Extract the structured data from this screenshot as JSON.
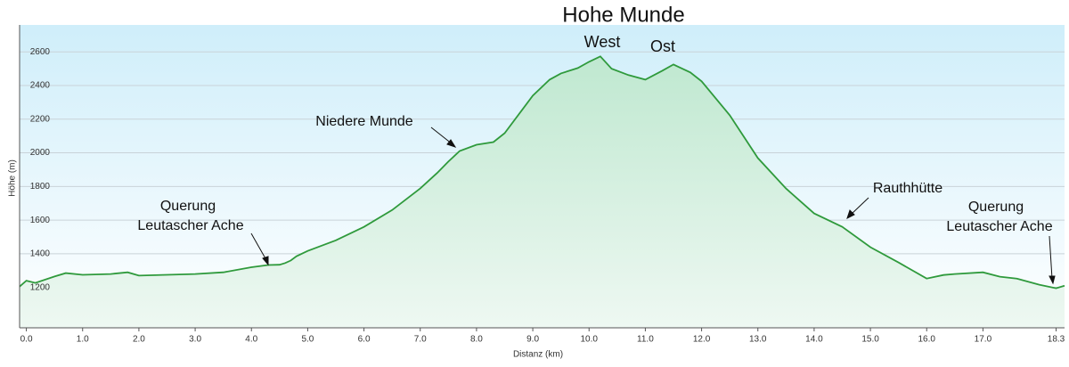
{
  "chart_data": {
    "type": "area",
    "title": "Hohe Munde",
    "x_label": "Distanz  (km)",
    "y_label": "Höhe (m)",
    "annotations": [
      "West",
      "Ost",
      "Niedere Munde",
      "Querung",
      "Leutascher Ache",
      "Rauthhütte",
      "Querung",
      "Leutascher Ache"
    ],
    "x": [
      -0.12,
      0.0,
      0.16,
      0.5,
      0.7,
      1.0,
      1.5,
      1.8,
      2.0,
      2.5,
      3.0,
      3.5,
      4.0,
      4.3,
      4.5,
      4.6,
      4.7,
      4.8,
      5.0,
      5.5,
      6.0,
      6.5,
      7.0,
      7.3,
      7.5,
      7.7,
      8.0,
      8.3,
      8.5,
      8.8,
      9.0,
      9.3,
      9.5,
      9.8,
      10.0,
      10.2,
      10.4,
      10.7,
      11.0,
      11.3,
      11.5,
      11.8,
      12.0,
      12.5,
      13.0,
      13.5,
      14.0,
      14.5,
      15.0,
      15.5,
      16.0,
      16.3,
      16.5,
      17.0,
      17.3,
      17.6,
      18.0,
      18.3,
      18.45
    ],
    "values": [
      1205,
      1240,
      1227,
      1265,
      1285,
      1275,
      1280,
      1290,
      1270,
      1275,
      1280,
      1290,
      1320,
      1333,
      1335,
      1345,
      1360,
      1385,
      1417,
      1480,
      1560,
      1660,
      1788,
      1880,
      1948,
      2011,
      2048,
      2064,
      2117,
      2250,
      2340,
      2435,
      2472,
      2504,
      2541,
      2573,
      2500,
      2462,
      2435,
      2488,
      2525,
      2478,
      2425,
      2223,
      1969,
      1788,
      1640,
      1560,
      1439,
      1348,
      1253,
      1274,
      1280,
      1290,
      1264,
      1253,
      1216,
      1195,
      1210
    ],
    "color": "#2f9a3c",
    "xlim": [
      -0.12,
      18.45
    ],
    "ylim": [
      960,
      2760
    ],
    "xticks": [
      {
        "value": 0,
        "label": "0.0"
      },
      {
        "value": 1,
        "label": "1.0"
      },
      {
        "value": 2,
        "label": "2.0"
      },
      {
        "value": 3,
        "label": "3.0"
      },
      {
        "value": 4,
        "label": "4.0"
      },
      {
        "value": 5,
        "label": "5.0"
      },
      {
        "value": 6,
        "label": "6.0"
      },
      {
        "value": 7,
        "label": "7.0"
      },
      {
        "value": 8,
        "label": "8.0"
      },
      {
        "value": 9,
        "label": "9.0"
      },
      {
        "value": 10,
        "label": "10.0"
      },
      {
        "value": 11,
        "label": "11.0"
      },
      {
        "value": 12,
        "label": "12.0"
      },
      {
        "value": 13,
        "label": "13.0"
      },
      {
        "value": 14,
        "label": "14.0"
      },
      {
        "value": 15,
        "label": "15.0"
      },
      {
        "value": 16,
        "label": "16.0"
      },
      {
        "value": 17,
        "label": "17.0"
      },
      {
        "value": 18.3,
        "label": "18.3"
      }
    ],
    "yticks": [
      1200,
      1400,
      1600,
      1800,
      2000,
      2200,
      2400,
      2600
    ],
    "grid": true
  }
}
